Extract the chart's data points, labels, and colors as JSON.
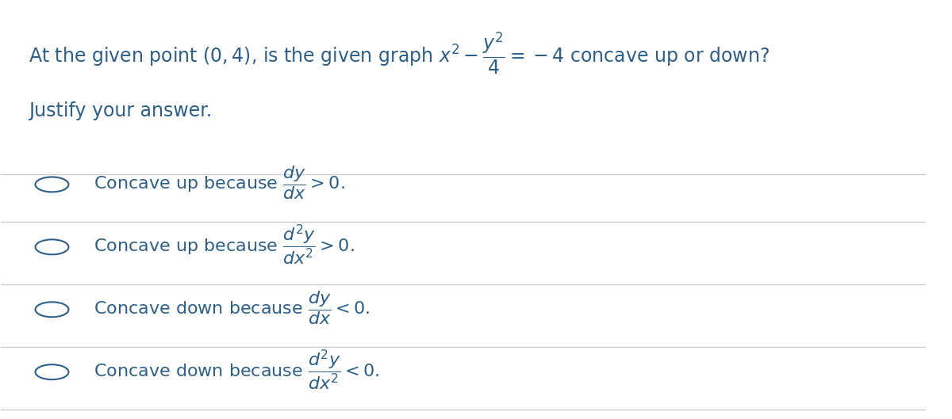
{
  "bg_color": "#ffffff",
  "text_color": "#2c5f8a",
  "line_color": "#cccccc",
  "title_line1": "At the given point $(0, 4)$, is the given graph $x^2 - \\dfrac{y^2}{4} = -4$ concave up or down?",
  "title_line2": "Justify your answer.",
  "options": [
    "Concave up because $\\dfrac{dy}{dx} > 0.$",
    "Concave up because $\\dfrac{d^2y}{dx^2} > 0.$",
    "Concave down because $\\dfrac{dy}{dx} < 0.$",
    "Concave down because $\\dfrac{d^2y}{dx^2} < 0.$"
  ],
  "figsize": [
    12.0,
    5.29
  ],
  "dpi": 100
}
